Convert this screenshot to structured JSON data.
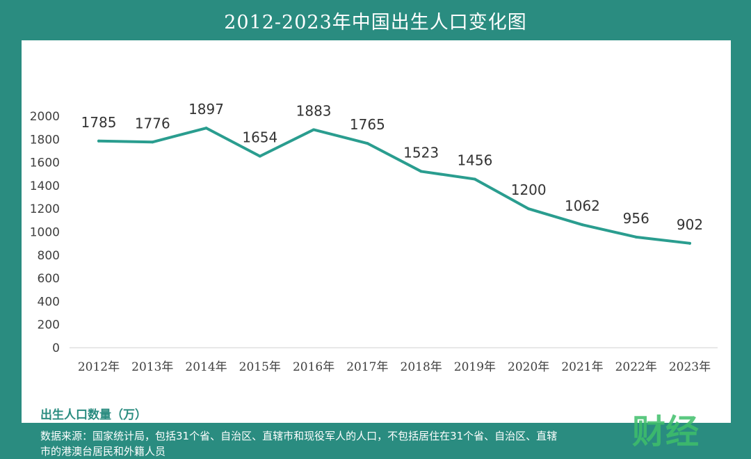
{
  "chart_data": {
    "type": "line",
    "title": "2012-2023年中国出生人口变化图",
    "categories": [
      "2012年",
      "2013年",
      "2014年",
      "2015年",
      "2016年",
      "2017年",
      "2018年",
      "2019年",
      "2020年",
      "2021年",
      "2022年",
      "2023年"
    ],
    "values": [
      1785,
      1776,
      1897,
      1654,
      1883,
      1765,
      1523,
      1456,
      1200,
      1062,
      956,
      902
    ],
    "ylim": [
      0,
      2000
    ],
    "yticks": [
      "0",
      "200",
      "400",
      "600",
      "800",
      "1000",
      "1200",
      "1400",
      "1600",
      "1800",
      "2000"
    ],
    "grid": false,
    "ylabel": "出生人口数量（万）",
    "line_color": "#2a9d8f"
  },
  "footer": {
    "source_line1": "数据来源：国家统计局，包括31个省、自治区、直辖市和现役军人的人口，不包括居住在31个省、自治区、直辖",
    "source_line2": "市的港澳台居民和外籍人员"
  },
  "watermark": {
    "text": "财经",
    "color": "#3fbf6a"
  }
}
